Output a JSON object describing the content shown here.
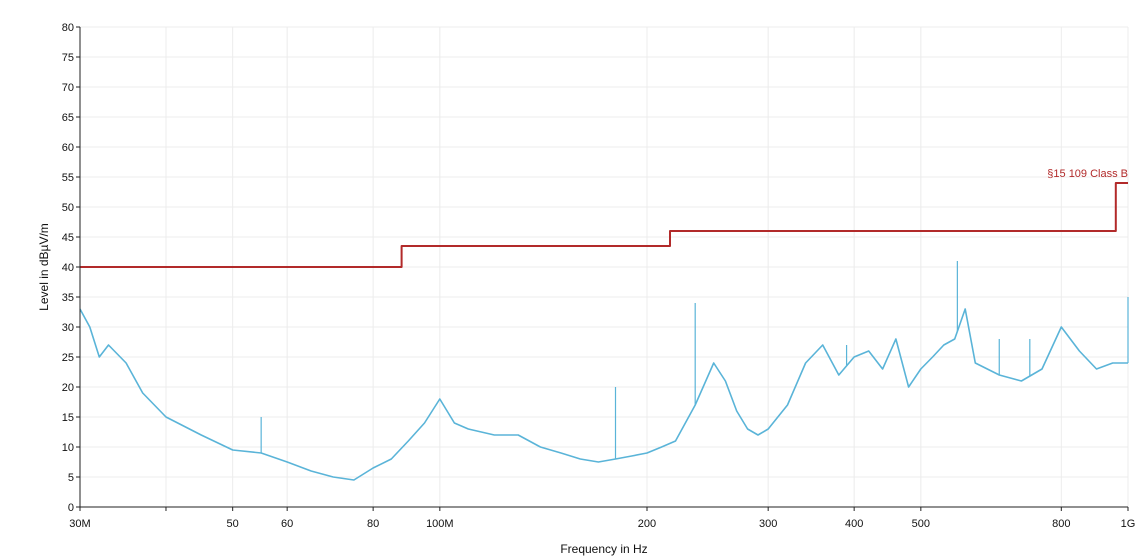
{
  "chart_data": {
    "type": "line",
    "xlabel": "Frequency in Hz",
    "ylabel": "Level in dBµV/m",
    "x_scale": "log",
    "xlim": [
      30000000,
      1000000000
    ],
    "ylim": [
      0,
      80
    ],
    "grid": true,
    "yticks": [
      0,
      5,
      10,
      15,
      20,
      25,
      30,
      35,
      40,
      45,
      50,
      55,
      60,
      65,
      70,
      75,
      80
    ],
    "xticks": [
      {
        "value": 30000000,
        "label": "30M"
      },
      {
        "value": 40000000,
        "label": ""
      },
      {
        "value": 50000000,
        "label": "50"
      },
      {
        "value": 60000000,
        "label": "60"
      },
      {
        "value": 80000000,
        "label": "80"
      },
      {
        "value": 100000000,
        "label": "100M"
      },
      {
        "value": 200000000,
        "label": "200"
      },
      {
        "value": 300000000,
        "label": "300"
      },
      {
        "value": 400000000,
        "label": "400"
      },
      {
        "value": 500000000,
        "label": "500"
      },
      {
        "value": 800000000,
        "label": "800"
      },
      {
        "value": 1000000000,
        "label": "1G"
      }
    ],
    "series": [
      {
        "name": "§15 109 Class B",
        "kind": "limit",
        "color": "#b22a2a",
        "x": [
          30000000,
          88000000,
          88000000,
          216000000,
          216000000,
          960000000,
          960000000,
          1000000000
        ],
        "y": [
          40,
          40,
          43.5,
          43.5,
          46,
          46,
          54,
          54
        ]
      },
      {
        "name": "",
        "kind": "measurement",
        "color": "#5ab4d8",
        "x": [
          30000000,
          31000000,
          32000000,
          33000000,
          35000000,
          37000000,
          40000000,
          45000000,
          50000000,
          55000000,
          60000000,
          65000000,
          70000000,
          75000000,
          80000000,
          85000000,
          90000000,
          95000000,
          100000000,
          105000000,
          110000000,
          120000000,
          130000000,
          140000000,
          150000000,
          160000000,
          170000000,
          180000000,
          190000000,
          200000000,
          210000000,
          220000000,
          235000000,
          250000000,
          260000000,
          270000000,
          280000000,
          290000000,
          300000000,
          320000000,
          340000000,
          360000000,
          380000000,
          400000000,
          420000000,
          440000000,
          460000000,
          480000000,
          500000000,
          520000000,
          540000000,
          560000000,
          580000000,
          600000000,
          650000000,
          700000000,
          750000000,
          800000000,
          850000000,
          900000000,
          950000000,
          1000000000
        ],
        "y": [
          33,
          30,
          25,
          27,
          24,
          19,
          15,
          12,
          9.5,
          9,
          7.5,
          6,
          5,
          4.5,
          6.5,
          8,
          11,
          14,
          18,
          14,
          13,
          12,
          12,
          10,
          9,
          8,
          7.5,
          8,
          8.5,
          9,
          10,
          11,
          17,
          24,
          21,
          16,
          13,
          12,
          13,
          17,
          24,
          27,
          22,
          25,
          26,
          23,
          28,
          20,
          23,
          25,
          27,
          28,
          33,
          24,
          22,
          21,
          23,
          30,
          26,
          23,
          24,
          24
        ]
      }
    ],
    "spikes": [
      {
        "x": 55000000,
        "y": 15
      },
      {
        "x": 180000000,
        "y": 20
      },
      {
        "x": 235000000,
        "y": 34
      },
      {
        "x": 390000000,
        "y": 27
      },
      {
        "x": 565000000,
        "y": 41
      },
      {
        "x": 650000000,
        "y": 28
      },
      {
        "x": 720000000,
        "y": 28
      },
      {
        "x": 1000000000,
        "y": 35
      }
    ]
  }
}
